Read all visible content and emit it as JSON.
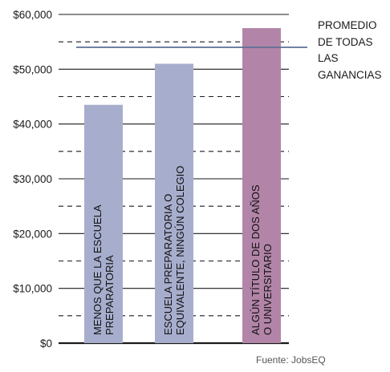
{
  "chart_data": {
    "type": "bar",
    "categories": [
      "MENOS QUE LA ESCUELA PREPARATORIA",
      "ESCUELA PREPARATORIA O EQUIVALENTE, NINGÚN COLEGIO",
      "ALGÚN TÍTULO DE DOS AÑOS O UNIVERSITARIO"
    ],
    "category_label_lines": [
      [
        "MENOS QUE LA ESCUELA",
        "PREPARATORIA"
      ],
      [
        "ESCUELA PREPARATORIA O",
        "EQUIVALENTE, NINGÚN COLEGIO"
      ],
      [
        "ALGÚN TÍTULO DE DOS AÑOS",
        "O UNIVERSITARIO"
      ]
    ],
    "values": [
      43500,
      51000,
      57500
    ],
    "bar_colors": [
      "#a7aecd",
      "#a7aecd",
      "#b285a8"
    ],
    "ylim": [
      0,
      60000
    ],
    "yticks": [
      0,
      10000,
      20000,
      30000,
      40000,
      50000,
      60000
    ],
    "ytick_labels": [
      "$0",
      "$10,000",
      "$20,000",
      "$30,000",
      "$40,000",
      "$50,000",
      "$60,000"
    ],
    "grid": "solid at major ticks, dashed at half-steps",
    "reference_line": {
      "value": 54000,
      "label": "PROMEDIO DE TODAS LAS GANANCIAS",
      "label_lines": [
        "PROMEDIO",
        "DE TODAS",
        "LAS",
        "GANANCIAS"
      ],
      "color": "#5d7194"
    },
    "source": "Fuente: JobsEQ"
  }
}
